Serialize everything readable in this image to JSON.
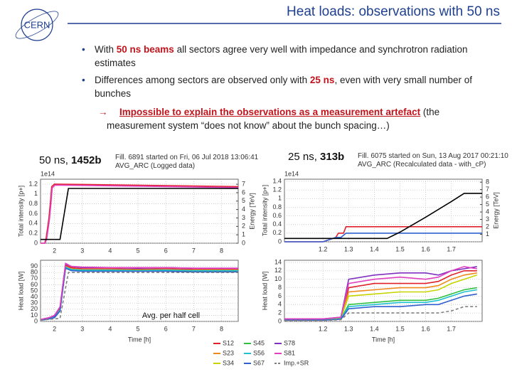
{
  "header": {
    "logo": "CERN",
    "title": "Heat loads: observations with 50 ns"
  },
  "bullets": [
    {
      "parts": [
        "With ",
        "50 ns beams",
        " all sectors agree very well with impedance and synchrotron radiation estimates"
      ]
    },
    {
      "parts": [
        "Differences among sectors are observed only with ",
        "25 ns",
        ", even with very small number of bunches"
      ]
    }
  ],
  "conclusion": {
    "highlight": "Impossible to explain the observations as a measurement artefact",
    "rest": " (the measurement system “does not know” about the bunch spacing…)"
  },
  "panels": [
    {
      "label": "50 ns, ",
      "bold": "1452b",
      "fill_line1": "Fill. 6891 started on Fri, 06 Jul 2018 13:06:41",
      "fill_line2": "AVG_ARC (Logged data)"
    },
    {
      "label": "25 ns, ",
      "bold": "313b",
      "fill_line1": "Fill. 6075 started on Sun, 13 Aug 2017 00:21:10",
      "fill_line2": "AVG_ARC (Recalculated data - with_cP)"
    }
  ],
  "charts": [
    {
      "type": "line",
      "ylabel": "Total intensity [p+]",
      "y2label": "Energy [TeV]",
      "y_offset_label": "1e14",
      "xlim": [
        1.5,
        8.6
      ],
      "xticks": [
        2,
        3,
        4,
        5,
        6,
        7,
        8
      ],
      "ylim": [
        0,
        1.3
      ],
      "yticks": [
        0,
        0.2,
        0.4,
        0.6,
        0.8,
        1.0,
        1.2
      ],
      "y2lim": [
        0,
        7.6
      ],
      "y2ticks": [
        0,
        1,
        2,
        3,
        4,
        5,
        6,
        7
      ],
      "grid": true,
      "series": [
        {
          "color": "#e0202a",
          "x": [
            1.5,
            1.65,
            1.7,
            1.75,
            1.8,
            1.85,
            1.9,
            2.0,
            8.6
          ],
          "values": [
            0,
            0,
            0.1,
            0.3,
            0.5,
            0.8,
            1.15,
            1.2,
            1.15
          ]
        },
        {
          "color": "#e040c0",
          "x": [
            1.5,
            1.66,
            1.72,
            1.77,
            1.82,
            1.87,
            1.92,
            2.02,
            8.6
          ],
          "values": [
            0,
            0,
            0.08,
            0.28,
            0.48,
            0.78,
            1.12,
            1.18,
            1.13
          ]
        },
        {
          "color": "#000000",
          "axis": "y2",
          "x": [
            1.5,
            2.2,
            2.5,
            8.6
          ],
          "values": [
            0.45,
            0.45,
            6.5,
            6.5
          ]
        }
      ]
    },
    {
      "type": "line",
      "xlabel": "Time [h]",
      "ylabel": "Heat load [W]",
      "annotation": "Avg. per half cell",
      "xlim": [
        1.5,
        8.6
      ],
      "xticks": [
        2,
        3,
        4,
        5,
        6,
        7,
        8
      ],
      "ylim": [
        0,
        100
      ],
      "yticks": [
        0,
        10,
        20,
        30,
        40,
        50,
        60,
        70,
        80,
        90
      ],
      "grid": true,
      "series": [
        {
          "name": "S12",
          "color": "#e0202a",
          "x": [
            1.5,
            1.8,
            2.0,
            2.2,
            2.4,
            2.6,
            3,
            4,
            5,
            6,
            7,
            8.6
          ],
          "values": [
            3,
            6,
            9,
            22,
            92,
            88,
            86,
            86,
            85,
            86,
            85,
            85
          ]
        },
        {
          "name": "S23",
          "color": "#f08a1c",
          "x": [
            1.5,
            1.8,
            2.0,
            2.2,
            2.4,
            2.6,
            3,
            4,
            5,
            6,
            7,
            8.6
          ],
          "values": [
            2,
            5,
            8,
            20,
            90,
            86,
            85,
            85,
            84,
            85,
            84,
            84
          ]
        },
        {
          "name": "S34",
          "color": "#c8d400",
          "x": [
            1.5,
            1.8,
            2.0,
            2.2,
            2.4,
            2.6,
            3,
            4,
            5,
            6,
            7,
            8.6
          ],
          "values": [
            2,
            5,
            7,
            19,
            89,
            85,
            84,
            84,
            84,
            84,
            83,
            83
          ]
        },
        {
          "name": "S45",
          "color": "#30c040",
          "x": [
            1.5,
            1.8,
            2.0,
            2.2,
            2.4,
            2.6,
            3,
            4,
            5,
            6,
            7,
            8.6
          ],
          "values": [
            2,
            4,
            7,
            18,
            88,
            84,
            83,
            83,
            83,
            83,
            82,
            82
          ]
        },
        {
          "name": "S56",
          "color": "#20c0d0",
          "x": [
            1.5,
            1.8,
            2.0,
            2.2,
            2.4,
            2.6,
            3,
            4,
            5,
            6,
            7,
            8.6
          ],
          "values": [
            2,
            4,
            7,
            18,
            89,
            85,
            84,
            84,
            83,
            84,
            83,
            83
          ]
        },
        {
          "name": "S67",
          "color": "#3060d0",
          "x": [
            1.5,
            1.8,
            2.0,
            2.2,
            2.4,
            2.6,
            3,
            4,
            5,
            6,
            7,
            8.6
          ],
          "values": [
            2,
            4,
            6,
            17,
            87,
            83,
            82,
            82,
            82,
            82,
            81,
            81
          ]
        },
        {
          "name": "S78",
          "color": "#8030c0",
          "x": [
            1.5,
            1.8,
            2.0,
            2.2,
            2.4,
            2.6,
            3,
            4,
            5,
            6,
            7,
            8.6
          ],
          "values": [
            3,
            6,
            9,
            23,
            94,
            90,
            88,
            88,
            87,
            88,
            87,
            87
          ]
        },
        {
          "name": "S81",
          "color": "#e040c0",
          "x": [
            1.5,
            1.8,
            2.0,
            2.2,
            2.4,
            2.6,
            3,
            4,
            5,
            6,
            7,
            8.6
          ],
          "values": [
            3,
            6,
            10,
            24,
            95,
            90,
            89,
            88,
            88,
            88,
            87,
            87
          ]
        },
        {
          "name": "Imp.+SR",
          "color": "#808080",
          "dashed": true,
          "x": [
            1.5,
            2.2,
            2.5,
            8.6
          ],
          "values": [
            2,
            5,
            80,
            80
          ]
        }
      ]
    },
    {
      "type": "line",
      "ylabel": "Total intensity [p+]",
      "y2label": "Energy [TeV]",
      "y_offset_label": "1e14",
      "xlim": [
        1.05,
        1.82
      ],
      "xticks": [
        1.2,
        1.3,
        1.4,
        1.5,
        1.6,
        1.7
      ],
      "ylim": [
        0,
        1.45
      ],
      "yticks": [
        0,
        0.2,
        0.4,
        0.6,
        0.8,
        1.0,
        1.2,
        1.4
      ],
      "y2lim": [
        0,
        8.4
      ],
      "y2ticks": [
        1,
        2,
        3,
        4,
        5,
        6,
        7,
        8
      ],
      "grid": true,
      "series": [
        {
          "color": "#e0202a",
          "x": [
            1.05,
            1.2,
            1.25,
            1.26,
            1.28,
            1.29,
            1.82
          ],
          "values": [
            0,
            0,
            0.1,
            0.2,
            0.2,
            0.35,
            0.35
          ]
        },
        {
          "color": "#3060d0",
          "x": [
            1.05,
            1.2,
            1.25,
            1.27,
            1.29,
            1.82
          ],
          "values": [
            0,
            0,
            0.1,
            0.1,
            0.2,
            0.2
          ]
        },
        {
          "color": "#000000",
          "axis": "y2",
          "x": [
            1.05,
            1.45,
            1.5,
            1.6,
            1.7,
            1.75,
            1.82
          ],
          "values": [
            0.45,
            0.45,
            1.3,
            3.3,
            5.4,
            6.5,
            6.5
          ]
        }
      ]
    },
    {
      "type": "line",
      "xlabel": "Time [h]",
      "ylabel": "Heat load [W]",
      "xlim": [
        1.05,
        1.82
      ],
      "xticks": [
        1.2,
        1.3,
        1.4,
        1.5,
        1.6,
        1.7
      ],
      "ylim": [
        0,
        14.5
      ],
      "yticks": [
        0,
        2,
        4,
        6,
        8,
        10,
        12,
        14
      ],
      "grid": true,
      "series": [
        {
          "color": "#e0202a",
          "x": [
            1.05,
            1.2,
            1.27,
            1.3,
            1.4,
            1.5,
            1.6,
            1.65,
            1.7,
            1.75,
            1.8
          ],
          "values": [
            0.5,
            0.5,
            0.8,
            8,
            9,
            9,
            9,
            9.5,
            11,
            12,
            12
          ]
        },
        {
          "color": "#f08a1c",
          "x": [
            1.05,
            1.2,
            1.27,
            1.3,
            1.4,
            1.5,
            1.6,
            1.65,
            1.7,
            1.75,
            1.8
          ],
          "values": [
            0.5,
            0.5,
            0.8,
            7,
            7.5,
            8,
            8,
            8.5,
            10,
            11,
            11.5
          ]
        },
        {
          "color": "#c8d400",
          "x": [
            1.05,
            1.2,
            1.27,
            1.3,
            1.4,
            1.5,
            1.6,
            1.65,
            1.7,
            1.75,
            1.8
          ],
          "values": [
            0.4,
            0.4,
            0.7,
            6,
            6.5,
            7,
            7,
            7.5,
            9,
            10,
            11
          ]
        },
        {
          "color": "#30c040",
          "x": [
            1.05,
            1.2,
            1.27,
            1.3,
            1.4,
            1.5,
            1.6,
            1.65,
            1.7,
            1.75,
            1.8
          ],
          "values": [
            0.3,
            0.3,
            0.6,
            4,
            4.5,
            5,
            5,
            5.5,
            6.5,
            7.5,
            8
          ]
        },
        {
          "color": "#20c0d0",
          "x": [
            1.05,
            1.2,
            1.27,
            1.3,
            1.4,
            1.5,
            1.6,
            1.65,
            1.7,
            1.75,
            1.8
          ],
          "values": [
            0.3,
            0.3,
            0.6,
            3.5,
            4,
            4.5,
            4.5,
            5,
            6,
            7,
            7.5
          ]
        },
        {
          "color": "#3060d0",
          "x": [
            1.05,
            1.2,
            1.27,
            1.3,
            1.4,
            1.5,
            1.6,
            1.65,
            1.7,
            1.75,
            1.8
          ],
          "values": [
            0.3,
            0.3,
            0.5,
            3,
            3.5,
            3.5,
            4,
            4,
            5,
            6,
            6.5
          ]
        },
        {
          "color": "#8030c0",
          "x": [
            1.05,
            1.2,
            1.27,
            1.3,
            1.4,
            1.5,
            1.6,
            1.65,
            1.7,
            1.75,
            1.8
          ],
          "values": [
            0.6,
            0.6,
            1,
            10,
            11,
            11.5,
            11.5,
            11,
            12,
            12.5,
            13
          ]
        },
        {
          "color": "#e040c0",
          "x": [
            1.05,
            1.2,
            1.27,
            1.3,
            1.4,
            1.5,
            1.6,
            1.65,
            1.7,
            1.75,
            1.8
          ],
          "values": [
            0.6,
            0.6,
            1,
            9,
            10,
            10.5,
            10,
            10.5,
            12,
            13,
            12.5
          ]
        },
        {
          "color": "#808080",
          "dashed": true,
          "x": [
            1.05,
            1.2,
            1.27,
            1.3,
            1.4,
            1.5,
            1.6,
            1.65,
            1.7,
            1.75,
            1.8
          ],
          "values": [
            0.2,
            0.2,
            0.4,
            2,
            2,
            2,
            2,
            2,
            2.5,
            3.5,
            3.5
          ]
        }
      ]
    }
  ]
}
